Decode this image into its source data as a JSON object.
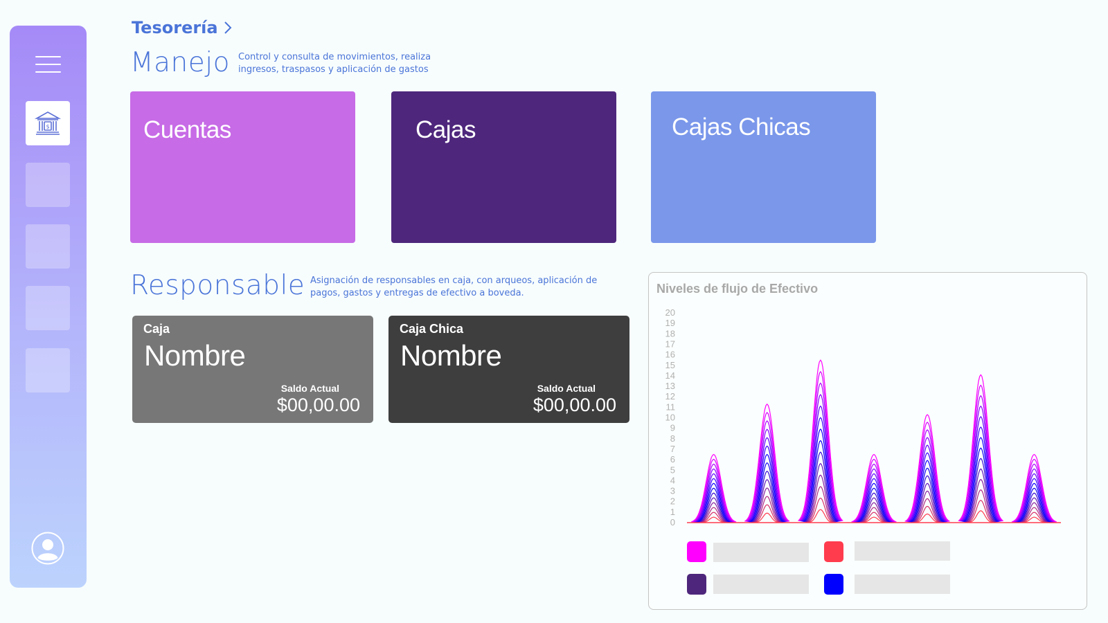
{
  "header": {
    "breadcrumb": "Tesorería",
    "chevron_icon": "chevron-right-icon"
  },
  "sidebar": {
    "menu_icon": "hamburger-menu-icon",
    "active_icon": "bank-icon",
    "user_icon": "user-avatar-icon"
  },
  "manejo": {
    "title": "Manejo",
    "description_line1": "Control y consulta de movimientos, realiza",
    "description_line2": "ingresos, traspasos y aplicación de gastos",
    "cards": [
      {
        "label": "Cuentas",
        "color": "#c76be6"
      },
      {
        "label": "Cajas",
        "color": "#4e277c"
      },
      {
        "label": "Cajas Chicas",
        "color": "#7a97ea"
      }
    ]
  },
  "responsable": {
    "title": "Responsable",
    "description_line1": "Asignación de responsables en caja, con arqueos, aplicación de",
    "description_line2": "pagos, gastos y entregas de efectivo a boveda.",
    "cards": [
      {
        "type": "Caja",
        "name": "Nombre",
        "balance_label": "Saldo Actual",
        "balance": "$00,00.00",
        "color": "#777777"
      },
      {
        "type": "Caja Chica",
        "name": "Nombre",
        "balance_label": "Saldo Actual",
        "balance": "$00,00.00",
        "color": "#3e3e3e"
      }
    ]
  },
  "chart_data": {
    "type": "area",
    "title": "Niveles de flujo de Efectivo",
    "yticks": [
      0,
      1,
      2,
      3,
      4,
      5,
      6,
      7,
      8,
      9,
      10,
      11,
      12,
      13,
      14,
      15,
      16,
      17,
      18,
      19,
      20
    ],
    "ylim": [
      0,
      20
    ],
    "grid": false,
    "peaks": [
      6.5,
      11.3,
      15.5,
      6.5,
      10.3,
      14.1,
      6.5
    ],
    "layers": 14,
    "layer_colors": [
      "#ff3b4e",
      "#0000ff",
      "#ff00ff"
    ],
    "legend": {
      "placement": "bottom",
      "swatches": [
        "#ff00ff",
        "#ff3b4e",
        "#4e277c",
        "#0000ff"
      ]
    }
  }
}
